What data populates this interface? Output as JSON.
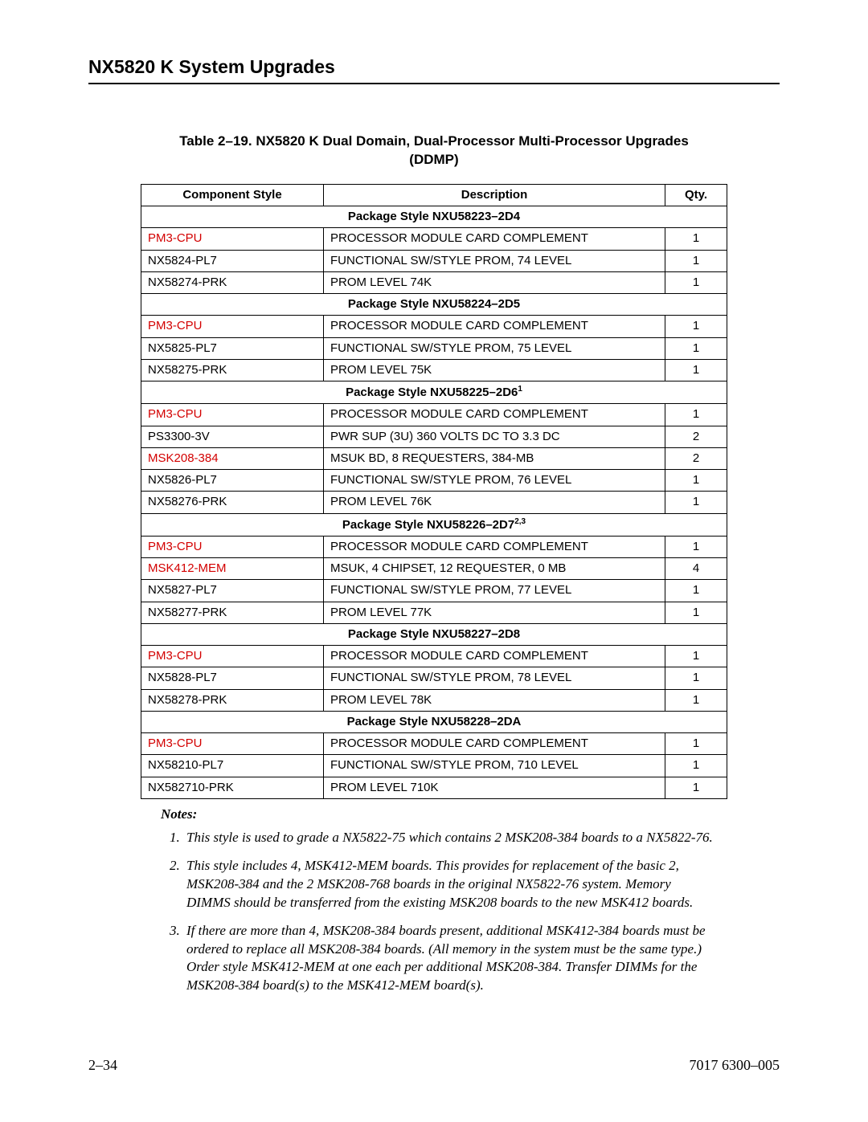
{
  "page_title": "NX5820 K System Upgrades",
  "table_title_line1": "Table 2–19.  NX5820 K Dual Domain, Dual-Processor Multi-Processor Upgrades",
  "table_title_line2": "(DDMP)",
  "columns": {
    "c1": "Component Style",
    "c2": "Description",
    "c3": "Qty."
  },
  "colors": {
    "highlight": "#d30000",
    "text": "#000000",
    "background": "#ffffff"
  },
  "packages": [
    {
      "header": "Package Style NXU58223–2D4",
      "sup": "",
      "rows": [
        {
          "c": "PM3-CPU",
          "red": true,
          "d": "PROCESSOR MODULE  CARD COMPLEMENT",
          "q": "1"
        },
        {
          "c": "NX5824-PL7",
          "red": false,
          "d": "FUNCTIONAL SW/STYLE PROM, 74 LEVEL",
          "q": "1"
        },
        {
          "c": "NX58274-PRK",
          "red": false,
          "d": "PROM LEVEL 74K",
          "q": "1"
        }
      ]
    },
    {
      "header": "Package Style NXU58224–2D5",
      "sup": "",
      "rows": [
        {
          "c": "PM3-CPU",
          "red": true,
          "d": "PROCESSOR MODULE  CARD COMPLEMENT",
          "q": "1"
        },
        {
          "c": "NX5825-PL7",
          "red": false,
          "d": "FUNCTIONAL SW/STYLE PROM, 75 LEVEL",
          "q": "1"
        },
        {
          "c": "NX58275-PRK",
          "red": false,
          "d": "PROM LEVEL 75K",
          "q": "1"
        }
      ]
    },
    {
      "header": "Package Style NXU58225–2D6",
      "sup": "1",
      "rows": [
        {
          "c": "PM3-CPU",
          "red": true,
          "d": "PROCESSOR MODULE  CARD COMPLEMENT",
          "q": "1"
        },
        {
          "c": "PS3300-3V",
          "red": false,
          "d": "PWR SUP (3U) 360 VOLTS DC TO 3.3 DC",
          "q": "2"
        },
        {
          "c": "MSK208-384",
          "red": true,
          "d": "MSUK BD, 8 REQUESTERS, 384-MB",
          "q": "2"
        },
        {
          "c": "NX5826-PL7",
          "red": false,
          "d": "FUNCTIONAL SW/STYLE PROM, 76 LEVEL",
          "q": "1"
        },
        {
          "c": "NX58276-PRK",
          "red": false,
          "d": "PROM LEVEL 76K",
          "q": "1"
        }
      ]
    },
    {
      "header": "Package Style NXU58226–2D7",
      "sup": "2,3",
      "rows": [
        {
          "c": "PM3-CPU",
          "red": true,
          "d": "PROCESSOR MODULE  CARD COMPLEMENT",
          "q": "1"
        },
        {
          "c": "MSK412-MEM",
          "red": true,
          "d": "MSUK, 4 CHIPSET, 12 REQUESTER, 0 MB",
          "q": "4"
        },
        {
          "c": "NX5827-PL7",
          "red": false,
          "d": "FUNCTIONAL SW/STYLE PROM, 77 LEVEL",
          "q": "1"
        },
        {
          "c": "NX58277-PRK",
          "red": false,
          "d": "PROM LEVEL 77K",
          "q": "1"
        }
      ]
    },
    {
      "header": "Package Style NXU58227–2D8",
      "sup": "",
      "rows": [
        {
          "c": "PM3-CPU",
          "red": true,
          "d": "PROCESSOR MODULE  CARD COMPLEMENT",
          "q": "1"
        },
        {
          "c": "NX5828-PL7",
          "red": false,
          "d": "FUNCTIONAL SW/STYLE PROM, 78 LEVEL",
          "q": "1"
        },
        {
          "c": "NX58278-PRK",
          "red": false,
          "d": "PROM LEVEL 78K",
          "q": "1"
        }
      ]
    },
    {
      "header": "Package Style NXU58228–2DA",
      "sup": "",
      "rows": [
        {
          "c": "PM3-CPU",
          "red": true,
          "d": "PROCESSOR MODULE  CARD COMPLEMENT",
          "q": "1"
        },
        {
          "c": "NX58210-PL7",
          "red": false,
          "d": "FUNCTIONAL SW/STYLE PROM, 710 LEVEL",
          "q": "1"
        },
        {
          "c": "NX582710-PRK",
          "red": false,
          "d": "PROM LEVEL 710K",
          "q": "1"
        }
      ]
    }
  ],
  "notes_label": "Notes:",
  "notes": [
    "This style is used to grade a NX5822-75 which contains 2 MSK208-384 boards to a NX5822-76.",
    "This style includes 4, MSK412-MEM boards.  This provides for replacement of the basic 2, MSK208-384 and the 2 MSK208-768 boards  in the original NX5822-76 system.  Memory DIMMS should be transferred from the existing MSK208 boards to the new MSK412 boards.",
    "If there are more than 4, MSK208-384 boards present, additional MSK412-384 boards must be ordered to replace all MSK208-384 boards. (All memory in the system must be the same type.)  Order style MSK412-MEM at one each per additional MSK208-384.  Transfer DIMMs for the MSK208-384 board(s) to the MSK412-MEM board(s)."
  ],
  "footer_left": "2–34",
  "footer_right": "7017 6300–005"
}
